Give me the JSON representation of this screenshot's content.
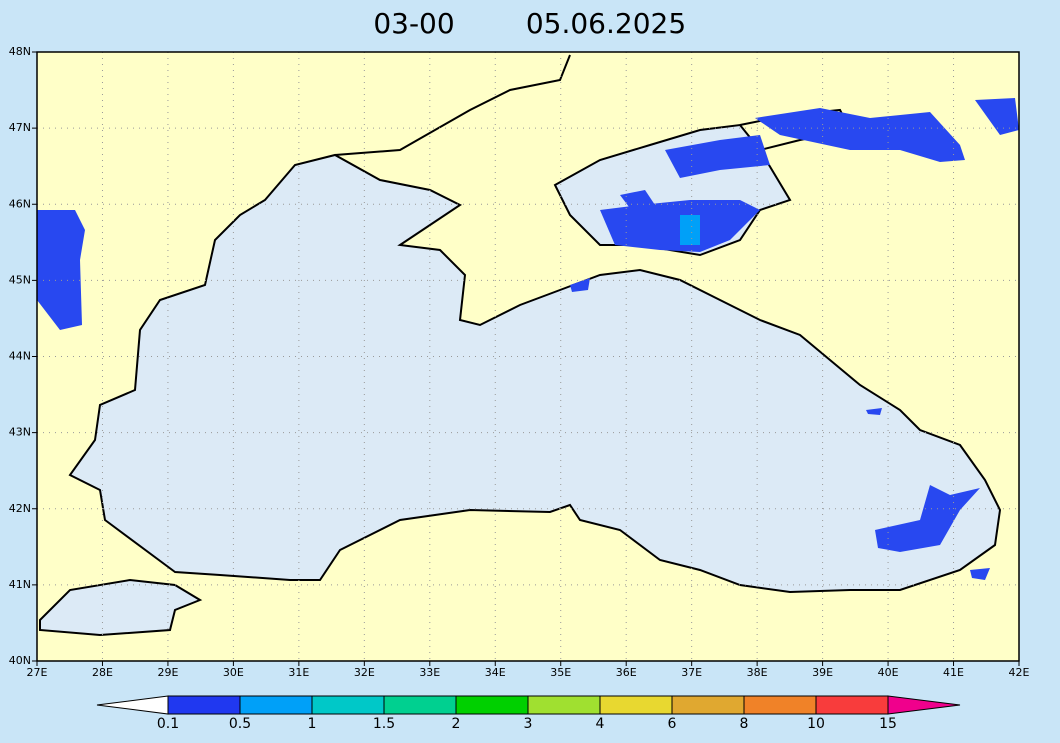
{
  "header": {
    "time": "03-00",
    "date": "05.06.2025"
  },
  "map": {
    "lat_ticks": [
      {
        "value": 40,
        "label": "40N"
      },
      {
        "value": 41,
        "label": "41N"
      },
      {
        "value": 42,
        "label": "42N"
      },
      {
        "value": 43,
        "label": "43N"
      },
      {
        "value": 44,
        "label": "44N"
      },
      {
        "value": 45,
        "label": "45N"
      },
      {
        "value": 46,
        "label": "46N"
      },
      {
        "value": 47,
        "label": "47N"
      },
      {
        "value": 48,
        "label": "48N"
      }
    ],
    "lon_ticks": [
      {
        "value": 27,
        "label": "27E"
      },
      {
        "value": 28,
        "label": "28E"
      },
      {
        "value": 29,
        "label": "29E"
      },
      {
        "value": 30,
        "label": "30E"
      },
      {
        "value": 31,
        "label": "31E"
      },
      {
        "value": 32,
        "label": "32E"
      },
      {
        "value": 33,
        "label": "33E"
      },
      {
        "value": 34,
        "label": "34E"
      },
      {
        "value": 35,
        "label": "35E"
      },
      {
        "value": 36,
        "label": "36E"
      },
      {
        "value": 37,
        "label": "37E"
      },
      {
        "value": 38,
        "label": "38E"
      },
      {
        "value": 39,
        "label": "39E"
      },
      {
        "value": 40,
        "label": "40E"
      },
      {
        "value": 41,
        "label": "41E"
      },
      {
        "value": 42,
        "label": "42E"
      }
    ],
    "grid": true
  },
  "colorbar": {
    "labels": [
      "0.1",
      "0.5",
      "1",
      "1.5",
      "2",
      "3",
      "4",
      "6",
      "8",
      "10",
      "15"
    ],
    "colors": [
      "#2038f0",
      "#00a0f8",
      "#00c8c8",
      "#00d090",
      "#00d000",
      "#a0e030",
      "#e8d830",
      "#e0a830",
      "#f08228",
      "#f83c3c"
    ],
    "low_color": "#ffffff",
    "high_color": "#f0008c"
  }
}
